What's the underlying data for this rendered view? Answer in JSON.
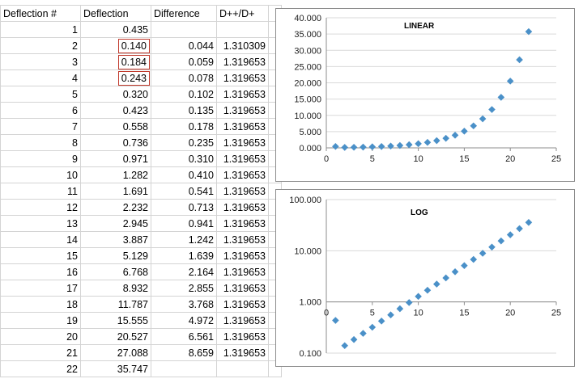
{
  "table": {
    "headers": [
      "Deflection #",
      "Deflection",
      "Difference",
      "D++/D+"
    ],
    "rows": [
      [
        "1",
        "0.435",
        "",
        ""
      ],
      [
        "2",
        "0.140",
        "0.044",
        "1.310309"
      ],
      [
        "3",
        "0.184",
        "0.059",
        "1.319653"
      ],
      [
        "4",
        "0.243",
        "0.078",
        "1.319653"
      ],
      [
        "5",
        "0.320",
        "0.102",
        "1.319653"
      ],
      [
        "6",
        "0.423",
        "0.135",
        "1.319653"
      ],
      [
        "7",
        "0.558",
        "0.178",
        "1.319653"
      ],
      [
        "8",
        "0.736",
        "0.235",
        "1.319653"
      ],
      [
        "9",
        "0.971",
        "0.310",
        "1.319653"
      ],
      [
        "10",
        "1.282",
        "0.410",
        "1.319653"
      ],
      [
        "11",
        "1.691",
        "0.541",
        "1.319653"
      ],
      [
        "12",
        "2.232",
        "0.713",
        "1.319653"
      ],
      [
        "13",
        "2.945",
        "0.941",
        "1.319653"
      ],
      [
        "14",
        "3.887",
        "1.242",
        "1.319653"
      ],
      [
        "15",
        "5.129",
        "1.639",
        "1.319653"
      ],
      [
        "16",
        "6.768",
        "2.164",
        "1.319653"
      ],
      [
        "17",
        "8.932",
        "2.855",
        "1.319653"
      ],
      [
        "18",
        "11.787",
        "3.768",
        "1.319653"
      ],
      [
        "19",
        "15.555",
        "4.972",
        "1.319653"
      ],
      [
        "20",
        "20.527",
        "6.561",
        "1.319653"
      ],
      [
        "21",
        "27.088",
        "8.659",
        "1.319653"
      ],
      [
        "22",
        "35.747",
        "",
        ""
      ]
    ],
    "boxed_rows": [
      1,
      2,
      3
    ]
  },
  "colors": {
    "marker": "#4a90c8",
    "box": "#c0392b",
    "grid": "#d4d4d4"
  },
  "chart_data": [
    {
      "type": "scatter",
      "title": "LINEAR",
      "x": [
        1,
        2,
        3,
        4,
        5,
        6,
        7,
        8,
        9,
        10,
        11,
        12,
        13,
        14,
        15,
        16,
        17,
        18,
        19,
        20,
        21,
        22
      ],
      "y": [
        0.435,
        0.14,
        0.184,
        0.243,
        0.32,
        0.423,
        0.558,
        0.736,
        0.971,
        1.282,
        1.691,
        2.232,
        2.945,
        3.887,
        5.129,
        6.768,
        8.932,
        11.787,
        15.555,
        20.527,
        27.088,
        35.747
      ],
      "xlim": [
        0,
        25
      ],
      "ylim": [
        0,
        40
      ],
      "x_ticks": [
        0,
        5,
        10,
        15,
        20,
        25
      ],
      "y_ticks": [
        0,
        5,
        10,
        15,
        20,
        25,
        30,
        35,
        40
      ],
      "x_tick_labels": [
        "0",
        "5",
        "10",
        "15",
        "20",
        "25"
      ],
      "y_tick_labels": [
        "0.000",
        "5.000",
        "10.000",
        "15.000",
        "20.000",
        "25.000",
        "30.000",
        "35.000",
        "40.000"
      ],
      "y_scale": "linear",
      "grid": true
    },
    {
      "type": "scatter",
      "title": "LOG",
      "x": [
        1,
        2,
        3,
        4,
        5,
        6,
        7,
        8,
        9,
        10,
        11,
        12,
        13,
        14,
        15,
        16,
        17,
        18,
        19,
        20,
        21,
        22
      ],
      "y": [
        0.435,
        0.14,
        0.184,
        0.243,
        0.32,
        0.423,
        0.558,
        0.736,
        0.971,
        1.282,
        1.691,
        2.232,
        2.945,
        3.887,
        5.129,
        6.768,
        8.932,
        11.787,
        15.555,
        20.527,
        27.088,
        35.747
      ],
      "xlim": [
        0,
        25
      ],
      "ylim": [
        0.1,
        100
      ],
      "x_ticks": [
        0,
        5,
        10,
        15,
        20,
        25
      ],
      "y_ticks": [
        0.1,
        1,
        10,
        100
      ],
      "x_tick_labels": [
        "0",
        "5",
        "10",
        "15",
        "20",
        "25"
      ],
      "y_tick_labels": [
        "0.100",
        "1.000",
        "10.000",
        "100.000"
      ],
      "y_scale": "log",
      "x_axis_crosses_y": 1,
      "grid": true
    }
  ]
}
